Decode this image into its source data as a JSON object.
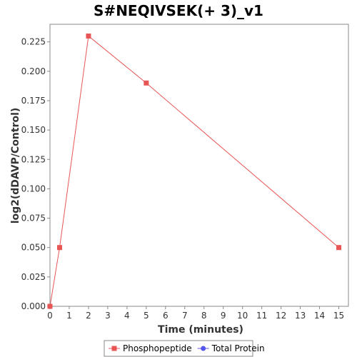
{
  "chart_data": {
    "type": "line",
    "title": "S#NEQIVSEK(+ 3)_v1",
    "xlabel": "Time (minutes)",
    "ylabel": "log2(dDAVP/Control)",
    "xlim": [
      0,
      15.5
    ],
    "ylim": [
      0,
      0.24
    ],
    "x_ticks": [
      0,
      1,
      2,
      3,
      4,
      5,
      6,
      7,
      8,
      9,
      10,
      11,
      12,
      13,
      14,
      15
    ],
    "x_tick_labels": [
      "0",
      "1",
      "2",
      "3",
      "4",
      "5",
      "6",
      "7",
      "8",
      "9",
      "10",
      "11",
      "12",
      "13",
      "14",
      "15"
    ],
    "y_ticks": [
      0,
      0.025,
      0.05,
      0.075,
      0.1,
      0.125,
      0.15,
      0.175,
      0.2,
      0.225
    ],
    "y_tick_labels": [
      "0.000",
      "0.025",
      "0.050",
      "0.075",
      "0.100",
      "0.125",
      "0.150",
      "0.175",
      "0.200",
      "0.225"
    ],
    "grid": false,
    "legend_position": "bottom",
    "series": [
      {
        "name": "Phosphopeptide",
        "color": "#e85555",
        "marker": "square",
        "x": [
          0,
          0.5,
          2,
          5,
          15
        ],
        "y": [
          0,
          0.05,
          0.23,
          0.19,
          0.05
        ]
      },
      {
        "name": "Total Protein",
        "color": "#5555ee",
        "marker": "circle",
        "x": [],
        "y": []
      }
    ]
  }
}
